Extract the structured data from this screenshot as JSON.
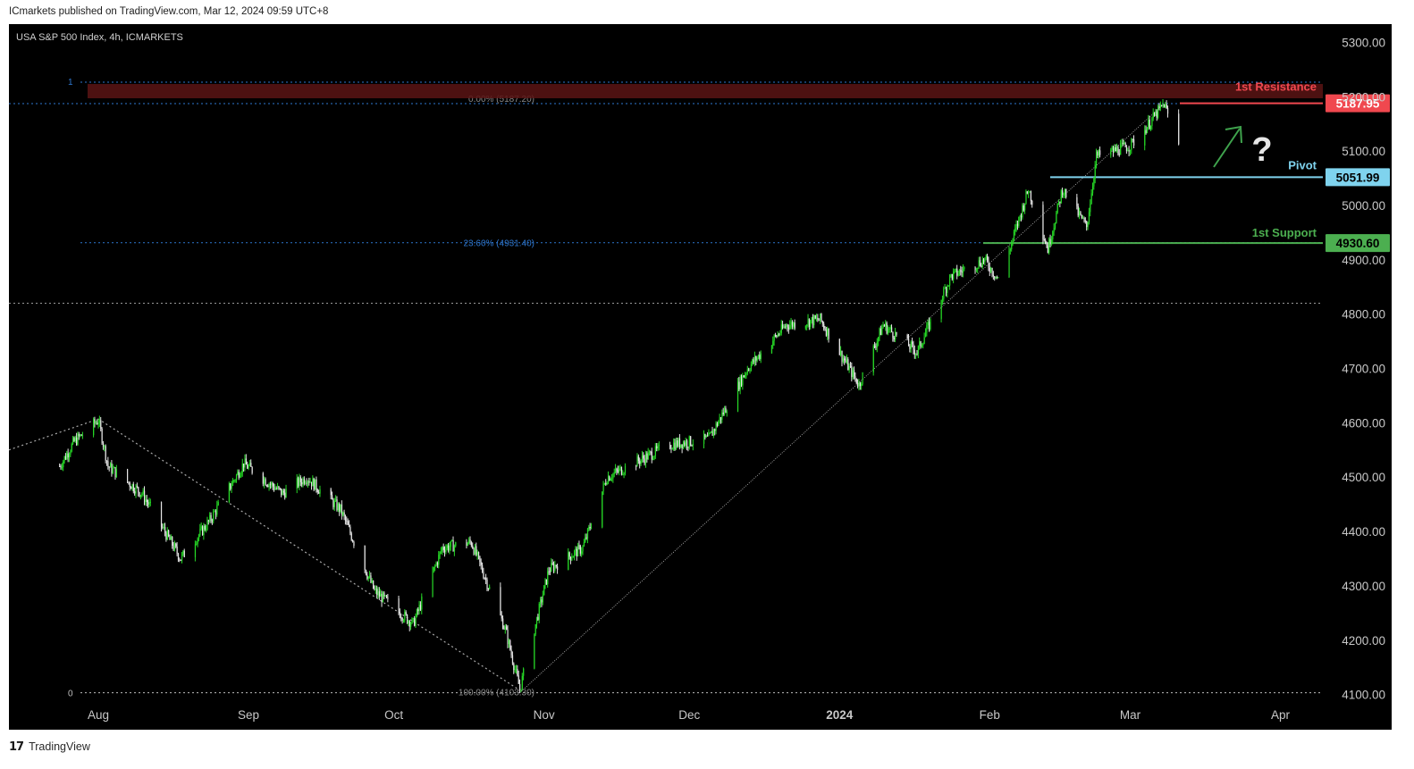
{
  "header": {
    "publisher_line": "ICmarkets published on TradingView.com, Mar 12, 2024 09:59 UTC+8"
  },
  "chart_title": "USA S&P 500 Index, 4h, ICMARKETS",
  "footer": {
    "brand_text": "TradingView",
    "brand_icon": "tradingview-logo-icon"
  },
  "colors": {
    "background": "#000000",
    "up_candle": "#26d926",
    "down_candle": "#e6e6e6",
    "resistance": "#f0484f",
    "pivot": "#7fd3ee",
    "support": "#4caf50",
    "fib_line": "#2e77d0",
    "axis_text": "#c8c8c8",
    "annotation_arrow": "#3fa34d"
  },
  "chart_data": {
    "type": "candlestick",
    "title": "USA S&P 500 Index, 4h, ICMARKETS",
    "ylim": [
      4100,
      5300
    ],
    "y_ticks": [
      "5300.00",
      "5200.00",
      "5100.00",
      "5000.00",
      "4900.00",
      "4800.00",
      "4700.00",
      "4600.00",
      "4500.00",
      "4400.00",
      "4300.00",
      "4200.00",
      "4100.00"
    ],
    "x_ticks": [
      "Aug",
      "Sep",
      "Oct",
      "Nov",
      "Dec",
      "2024",
      "Feb",
      "Mar",
      "Apr"
    ],
    "price_path": [
      {
        "x": "Jul 24",
        "y": 4520
      },
      {
        "x": "Jul 27",
        "y": 4565
      },
      {
        "x": "Aug 1",
        "y": 4605
      },
      {
        "x": "Aug 3",
        "y": 4520
      },
      {
        "x": "Aug 10",
        "y": 4470
      },
      {
        "x": "Aug 18",
        "y": 4350
      },
      {
        "x": "Aug 24",
        "y": 4420
      },
      {
        "x": "Aug 31",
        "y": 4525
      },
      {
        "x": "Sep 8",
        "y": 4470
      },
      {
        "x": "Sep 13",
        "y": 4500
      },
      {
        "x": "Sep 20",
        "y": 4440
      },
      {
        "x": "Sep 27",
        "y": 4290
      },
      {
        "x": "Oct 5",
        "y": 4230
      },
      {
        "x": "Oct 11",
        "y": 4370
      },
      {
        "x": "Oct 17",
        "y": 4380
      },
      {
        "x": "Oct 24",
        "y": 4220
      },
      {
        "x": "Oct 27",
        "y": 4110
      },
      {
        "x": "Nov 2",
        "y": 4330
      },
      {
        "x": "Nov 9",
        "y": 4370
      },
      {
        "x": "Nov 14",
        "y": 4500
      },
      {
        "x": "Nov 27",
        "y": 4560
      },
      {
        "x": "Dec 5",
        "y": 4570
      },
      {
        "x": "Dec 13",
        "y": 4700
      },
      {
        "x": "Dec 21",
        "y": 4780
      },
      {
        "x": "Dec 28",
        "y": 4790
      },
      {
        "x": "Jan 5",
        "y": 4670
      },
      {
        "x": "Jan 10",
        "y": 4780
      },
      {
        "x": "Jan 17",
        "y": 4730
      },
      {
        "x": "Jan 24",
        "y": 4870
      },
      {
        "x": "Jan 31",
        "y": 4900
      },
      {
        "x": "Feb 3",
        "y": 4860
      },
      {
        "x": "Feb 9",
        "y": 5030
      },
      {
        "x": "Feb 13",
        "y": 4920
      },
      {
        "x": "Feb 16",
        "y": 5030
      },
      {
        "x": "Feb 21",
        "y": 4960
      },
      {
        "x": "Feb 23",
        "y": 5090
      },
      {
        "x": "Mar 1",
        "y": 5110
      },
      {
        "x": "Mar 4",
        "y": 5140
      },
      {
        "x": "Mar 8",
        "y": 5187
      },
      {
        "x": "Mar 11",
        "y": 5110
      }
    ],
    "fibonacci": {
      "levels": [
        {
          "ratio_label": "0.00%",
          "price_label": "(5187.20)"
        },
        {
          "ratio_label": "23.60%",
          "price_label": "(4931.40)"
        },
        {
          "ratio_label": "100.00%",
          "price_label": "(4103.30)"
        }
      ],
      "edge_labels": [
        "1",
        "0"
      ]
    },
    "levels": [
      {
        "name": "1st Resistance",
        "value": 5187.95,
        "label": "5187.95"
      },
      {
        "name": "Pivot",
        "value": 5051.99,
        "label": "5051.99"
      },
      {
        "name": "1st Support",
        "value": 4930.6,
        "label": "4930.60"
      }
    ],
    "annotations": [
      "?"
    ]
  }
}
